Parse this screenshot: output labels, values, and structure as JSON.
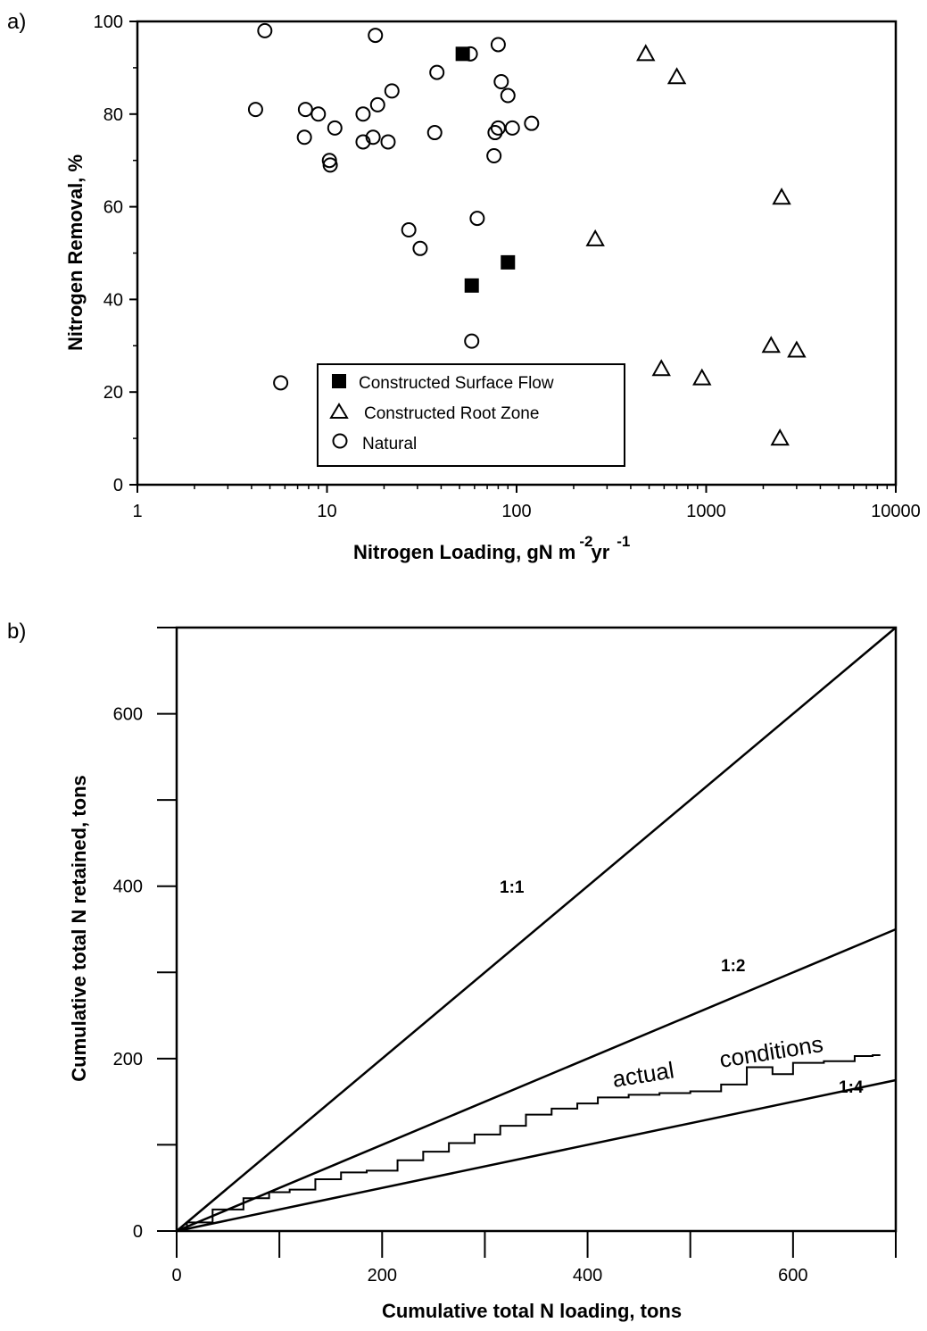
{
  "chart_data": [
    {
      "panel_label": "a)",
      "type": "scatter",
      "xscale": "log",
      "xlim": [
        1,
        10000
      ],
      "ylim": [
        0,
        100
      ],
      "xlabel": "Nitrogen Loading,  gN m",
      "xlabel_sup1": "-2",
      "xlabel_mid": "yr",
      "xlabel_sup2": "-1",
      "ylabel": "Nitrogen Removal, %",
      "xticks": [
        "1",
        "10",
        "100",
        "1000",
        "10000"
      ],
      "yticks": [
        "0",
        "20",
        "40",
        "60",
        "80",
        "100"
      ],
      "legend_position": "bottom-center",
      "series": [
        {
          "name": "Constructed Surface Flow",
          "marker": "filled-square",
          "points": [
            [
              52,
              93
            ],
            [
              90,
              48
            ],
            [
              58,
              43
            ]
          ]
        },
        {
          "name": "Constructed Root Zone",
          "marker": "open-triangle",
          "points": [
            [
              480,
              93
            ],
            [
              700,
              88
            ],
            [
              2500,
              62
            ],
            [
              260,
              53
            ],
            [
              2200,
              30
            ],
            [
              3000,
              29
            ],
            [
              580,
              25
            ],
            [
              950,
              23
            ],
            [
              2450,
              10
            ]
          ]
        },
        {
          "name": "Natural",
          "marker": "open-circle",
          "points": [
            [
              4.7,
              98
            ],
            [
              18,
              97
            ],
            [
              80,
              95
            ],
            [
              57,
              93
            ],
            [
              38,
              89
            ],
            [
              83,
              87
            ],
            [
              22,
              85
            ],
            [
              90,
              84
            ],
            [
              4.2,
              81
            ],
            [
              7.7,
              81
            ],
            [
              18.5,
              82
            ],
            [
              9,
              80
            ],
            [
              15.5,
              80
            ],
            [
              120,
              78
            ],
            [
              11,
              77
            ],
            [
              95,
              77
            ],
            [
              80,
              77
            ],
            [
              37,
              76
            ],
            [
              77,
              76
            ],
            [
              7.6,
              75
            ],
            [
              15.5,
              74
            ],
            [
              17.5,
              75
            ],
            [
              21,
              74
            ],
            [
              10.3,
              70
            ],
            [
              10.4,
              69
            ],
            [
              76,
              71
            ],
            [
              62,
              57.5
            ],
            [
              27,
              55
            ],
            [
              31,
              51
            ],
            [
              58,
              31
            ],
            [
              5.7,
              22
            ]
          ]
        }
      ]
    },
    {
      "panel_label": "b)",
      "type": "line",
      "xlim": [
        0,
        700
      ],
      "ylim": [
        0,
        700
      ],
      "xlabel": "Cumulative total N loading, tons",
      "ylabel": "Cumulative total N retained, tons",
      "xticks": [
        "0",
        "200",
        "400",
        "600"
      ],
      "yticks": [
        "0",
        "200",
        "400",
        "600"
      ],
      "reference_lines": [
        {
          "name": "1:1",
          "slope": 1.0
        },
        {
          "name": "1:2",
          "slope": 0.5
        },
        {
          "name": "1:4",
          "slope": 0.25
        }
      ],
      "actual_label_1": "actual",
      "actual_label_2": "conditions",
      "series": [
        {
          "points": [
            [
              0,
              0
            ],
            [
              20,
              10
            ],
            [
              50,
              25
            ],
            [
              80,
              38
            ],
            [
              100,
              45
            ],
            [
              120,
              48
            ],
            [
              150,
              60
            ],
            [
              170,
              68
            ],
            [
              200,
              70
            ],
            [
              230,
              82
            ],
            [
              250,
              92
            ],
            [
              280,
              102
            ],
            [
              300,
              112
            ],
            [
              330,
              122
            ],
            [
              350,
              135
            ],
            [
              380,
              142
            ],
            [
              400,
              148
            ],
            [
              420,
              155
            ],
            [
              460,
              158
            ],
            [
              480,
              160
            ],
            [
              520,
              162
            ],
            [
              540,
              170
            ],
            [
              570,
              190
            ],
            [
              590,
              182
            ],
            [
              610,
              195
            ],
            [
              650,
              197
            ],
            [
              670,
              203
            ],
            [
              685,
              204
            ]
          ]
        }
      ]
    }
  ]
}
